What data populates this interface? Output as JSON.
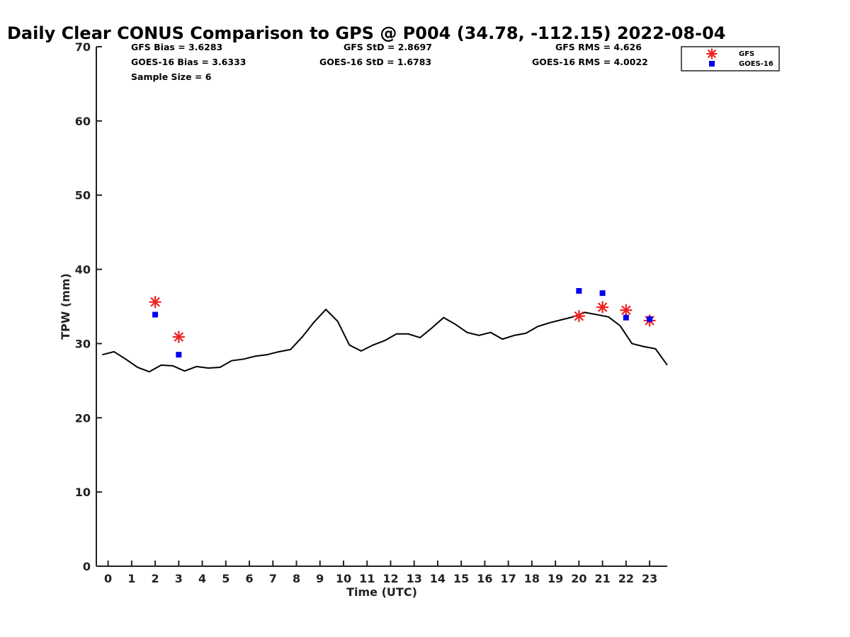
{
  "chart_data": {
    "type": "line",
    "title": "Daily Clear CONUS Comparison to GPS @ P004 (34.78, -112.15) 2022-08-04",
    "xlabel": "Time (UTC)",
    "ylabel": "TPW (mm)",
    "xlim": [
      -0.5,
      23.75
    ],
    "ylim": [
      0,
      70
    ],
    "xticks": [
      "0",
      "1",
      "2",
      "3",
      "4",
      "5",
      "6",
      "7",
      "8",
      "9",
      "10",
      "11",
      "12",
      "13",
      "14",
      "15",
      "16",
      "17",
      "18",
      "19",
      "20",
      "21",
      "22",
      "23"
    ],
    "yticks": [
      "0",
      "10",
      "20",
      "30",
      "40",
      "50",
      "60",
      "70"
    ],
    "grid": false,
    "legend_position": "top-right",
    "stats": {
      "gfs_bias": "GFS Bias = 3.6283",
      "goes_bias": "GOES-16 Bias = 3.6333",
      "sample_size": "Sample Size = 6",
      "gfs_std": "GFS StD = 2.8697",
      "goes_std": "GOES-16 StD = 1.6783",
      "gfs_rms": "GFS RMS = 4.626",
      "goes_rms": "GOES-16 RMS = 4.0022"
    },
    "series": [
      {
        "name": "GPS",
        "style": "line",
        "color": "#000000",
        "x": [
          -0.25,
          0.25,
          0.75,
          1.25,
          1.75,
          2.25,
          2.75,
          3.25,
          3.75,
          4.25,
          4.75,
          5.25,
          5.75,
          6.25,
          6.75,
          7.25,
          7.75,
          8.25,
          8.75,
          9.25,
          9.75,
          10.25,
          10.75,
          11.25,
          11.75,
          12.25,
          12.75,
          13.25,
          13.75,
          14.25,
          14.75,
          15.25,
          15.75,
          16.25,
          16.75,
          17.25,
          17.75,
          18.25,
          18.75,
          19.25,
          19.75,
          20.25,
          20.75,
          21.25,
          21.75,
          22.25,
          22.75,
          23.25,
          23.75
        ],
        "values": [
          28.5,
          28.9,
          27.9,
          26.8,
          26.2,
          27.1,
          27.0,
          26.3,
          26.9,
          26.7,
          26.8,
          27.7,
          27.9,
          28.3,
          28.5,
          28.9,
          29.2,
          30.9,
          32.9,
          34.6,
          33.0,
          29.8,
          29.0,
          29.8,
          30.4,
          31.3,
          31.3,
          30.8,
          32.1,
          33.5,
          32.6,
          31.5,
          31.1,
          31.5,
          30.6,
          31.1,
          31.4,
          32.3,
          32.8,
          33.2,
          33.6,
          34.2,
          33.9,
          33.6,
          32.4,
          30.0,
          29.6,
          29.3,
          27.1
        ]
      },
      {
        "name": "GFS",
        "style": "asterisk",
        "color": "#ee2222",
        "x": [
          2,
          3,
          20,
          21,
          22,
          23
        ],
        "values": [
          35.6,
          30.9,
          33.7,
          34.9,
          34.5,
          33.1
        ]
      },
      {
        "name": "GOES-16",
        "style": "square",
        "color": "#0000ee",
        "x": [
          2,
          3,
          20,
          21,
          22,
          23
        ],
        "values": [
          33.9,
          28.5,
          37.1,
          36.8,
          33.5,
          33.3
        ]
      }
    ]
  }
}
